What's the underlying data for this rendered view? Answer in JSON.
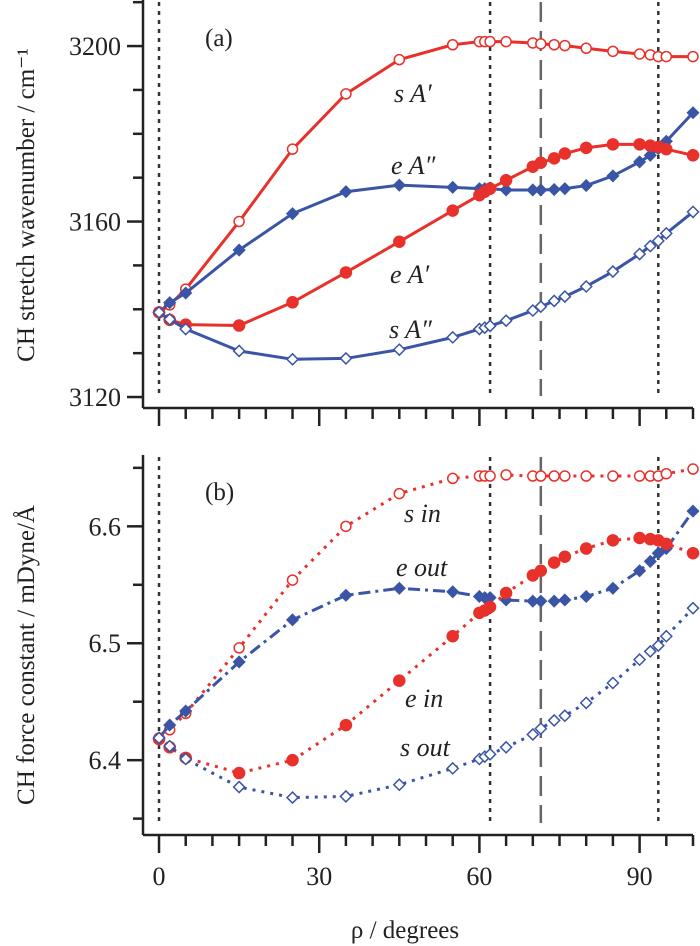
{
  "chart_data": [
    {
      "type": "line",
      "panel_label": "(a)",
      "xlabel": "ρ / degrees",
      "ylabel": "CH stretch wavenumber / cm⁻¹",
      "xlim": [
        -3,
        100
      ],
      "ylim": [
        3117.5,
        3210.5
      ],
      "xticks": [
        0,
        30,
        60,
        90
      ],
      "yticks": [
        3120,
        3160,
        3200
      ],
      "grid": false,
      "x": [
        0,
        2,
        5,
        15,
        25,
        35,
        45,
        55,
        60,
        61,
        62,
        65,
        70,
        71.5,
        74,
        76,
        80,
        85,
        90,
        92,
        93.5,
        95,
        100
      ],
      "series": [
        {
          "name": "s A′",
          "color": "#e8312a",
          "marker": "open-circle",
          "line": "solid",
          "values": [
            3139.3,
            3141,
            3144.6,
            3160,
            3176.5,
            3189.1,
            3196.9,
            3200.3,
            3201,
            3201,
            3201,
            3201,
            3200.7,
            3200.5,
            3200.3,
            3200.1,
            3199.5,
            3198.8,
            3198.2,
            3198,
            3197.6,
            3197.6,
            3197.6
          ]
        },
        {
          "name": "e A″",
          "color": "#3a55a5",
          "marker": "filled-diamond",
          "line": "solid",
          "values": [
            3139.3,
            3141.5,
            3143.7,
            3153.5,
            3161.8,
            3166.8,
            3168.3,
            3167.8,
            3167.5,
            3167.5,
            3167.5,
            3167.2,
            3167.2,
            3167.2,
            3167.3,
            3167.5,
            3168.2,
            3170.4,
            3173.6,
            3175.1,
            3176.6,
            3178.3,
            3184.8
          ]
        },
        {
          "name": "e A′",
          "color": "#e8312a",
          "marker": "filled-circle",
          "line": "solid",
          "values": [
            3139.3,
            3137.6,
            3136.5,
            3136.3,
            3141.6,
            3148.4,
            3155.4,
            3162.5,
            3166,
            3166.8,
            3167.5,
            3169.4,
            3172.5,
            3173.4,
            3174.4,
            3175.5,
            3176.8,
            3177.6,
            3177.6,
            3177.3,
            3177,
            3176.5,
            3175.1
          ]
        },
        {
          "name": "s A″",
          "color": "#3a55a5",
          "marker": "open-diamond",
          "line": "solid",
          "values": [
            3139.3,
            3137.7,
            3135.5,
            3130.5,
            3128.6,
            3128.8,
            3130.8,
            3133.6,
            3135.5,
            3135.8,
            3136.2,
            3137.4,
            3139.7,
            3140.6,
            3141.9,
            3142.9,
            3145.2,
            3148.6,
            3152.6,
            3154.4,
            3155.6,
            3157.3,
            3162.2
          ]
        }
      ],
      "vlines_dotted": [
        0,
        62,
        93.5
      ],
      "vline_dashed": 71.5
    },
    {
      "type": "line",
      "panel_label": "(b)",
      "xlabel": "ρ / degrees",
      "ylabel": "CH force constant / mDyne/Å",
      "xlim": [
        -3,
        100
      ],
      "ylim": [
        6.336,
        6.661
      ],
      "xticks": [
        0,
        30,
        60,
        90
      ],
      "yticks": [
        6.4,
        6.5,
        6.6
      ],
      "grid": false,
      "x": [
        0,
        2,
        5,
        15,
        25,
        35,
        45,
        55,
        60,
        61,
        62,
        65,
        70,
        71.5,
        74,
        76,
        80,
        85,
        90,
        92,
        93.5,
        95,
        100
      ],
      "series": [
        {
          "name": "s in",
          "color": "#e8312a",
          "marker": "open-circle",
          "line": "dotted",
          "values": [
            6.419,
            6.426,
            6.44,
            6.496,
            6.554,
            6.6,
            6.628,
            6.641,
            6.643,
            6.643,
            6.643,
            6.644,
            6.643,
            6.643,
            6.643,
            6.643,
            6.643,
            6.643,
            6.643,
            6.643,
            6.643,
            6.645,
            6.649
          ]
        },
        {
          "name": "e out",
          "color": "#3a55a5",
          "marker": "filled-diamond",
          "line": "dashdot",
          "values": [
            6.419,
            6.43,
            6.442,
            6.484,
            6.52,
            6.541,
            6.547,
            6.544,
            6.54,
            6.539,
            6.539,
            6.537,
            6.536,
            6.536,
            6.536,
            6.537,
            6.54,
            6.547,
            6.562,
            6.57,
            6.577,
            6.581,
            6.613
          ]
        },
        {
          "name": "e in",
          "color": "#e8312a",
          "marker": "filled-circle",
          "line": "dotted",
          "values": [
            6.418,
            6.411,
            6.402,
            6.389,
            6.4,
            6.43,
            6.468,
            6.506,
            6.526,
            6.528,
            6.531,
            6.543,
            6.558,
            6.562,
            6.569,
            6.574,
            6.581,
            6.588,
            6.59,
            6.589,
            6.588,
            6.585,
            6.577
          ]
        },
        {
          "name": "s out",
          "color": "#3a55a5",
          "marker": "open-diamond",
          "line": "dotted",
          "values": [
            6.419,
            6.412,
            6.401,
            6.377,
            6.368,
            6.369,
            6.379,
            6.393,
            6.401,
            6.403,
            6.405,
            6.411,
            6.422,
            6.427,
            6.434,
            6.438,
            6.449,
            6.466,
            6.486,
            6.493,
            6.498,
            6.506,
            6.53
          ]
        }
      ],
      "vlines_dotted": [
        0,
        62,
        93.5
      ],
      "vline_dashed": 71.5
    }
  ]
}
